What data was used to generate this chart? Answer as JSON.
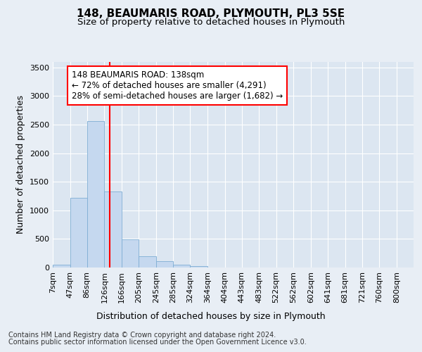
{
  "title": "148, BEAUMARIS ROAD, PLYMOUTH, PL3 5SE",
  "subtitle": "Size of property relative to detached houses in Plymouth",
  "xlabel": "Distribution of detached houses by size in Plymouth",
  "ylabel": "Number of detached properties",
  "footer_line1": "Contains HM Land Registry data © Crown copyright and database right 2024.",
  "footer_line2": "Contains public sector information licensed under the Open Government Licence v3.0.",
  "annotation_line1": "148 BEAUMARIS ROAD: 138sqm",
  "annotation_line2": "← 72% of detached houses are smaller (4,291)",
  "annotation_line3": "28% of semi-detached houses are larger (1,682) →",
  "property_size": 138,
  "bin_edges": [
    7,
    47,
    86,
    126,
    166,
    205,
    245,
    285,
    324,
    364,
    404,
    443,
    483,
    522,
    562,
    602,
    641,
    681,
    721,
    760,
    800,
    839
  ],
  "tick_labels": [
    "7sqm",
    "47sqm",
    "86sqm",
    "126sqm",
    "166sqm",
    "205sqm",
    "245sqm",
    "285sqm",
    "324sqm",
    "364sqm",
    "404sqm",
    "443sqm",
    "483sqm",
    "522sqm",
    "562sqm",
    "602sqm",
    "641sqm",
    "681sqm",
    "721sqm",
    "760sqm",
    "800sqm"
  ],
  "values": [
    50,
    1220,
    2560,
    1330,
    495,
    195,
    105,
    55,
    30,
    0,
    0,
    0,
    0,
    0,
    0,
    0,
    0,
    0,
    0,
    0,
    0
  ],
  "bar_color": "#c5d8ef",
  "bar_edge_color": "#7eadd4",
  "red_line_x": 138,
  "ylim": [
    0,
    3600
  ],
  "yticks": [
    0,
    500,
    1000,
    1500,
    2000,
    2500,
    3000,
    3500
  ],
  "background_color": "#e8eef5",
  "plot_bg_color": "#dce6f1",
  "grid_color": "#ffffff",
  "title_fontsize": 11,
  "subtitle_fontsize": 9.5,
  "axis_label_fontsize": 9,
  "tick_fontsize": 8,
  "footer_fontsize": 7
}
